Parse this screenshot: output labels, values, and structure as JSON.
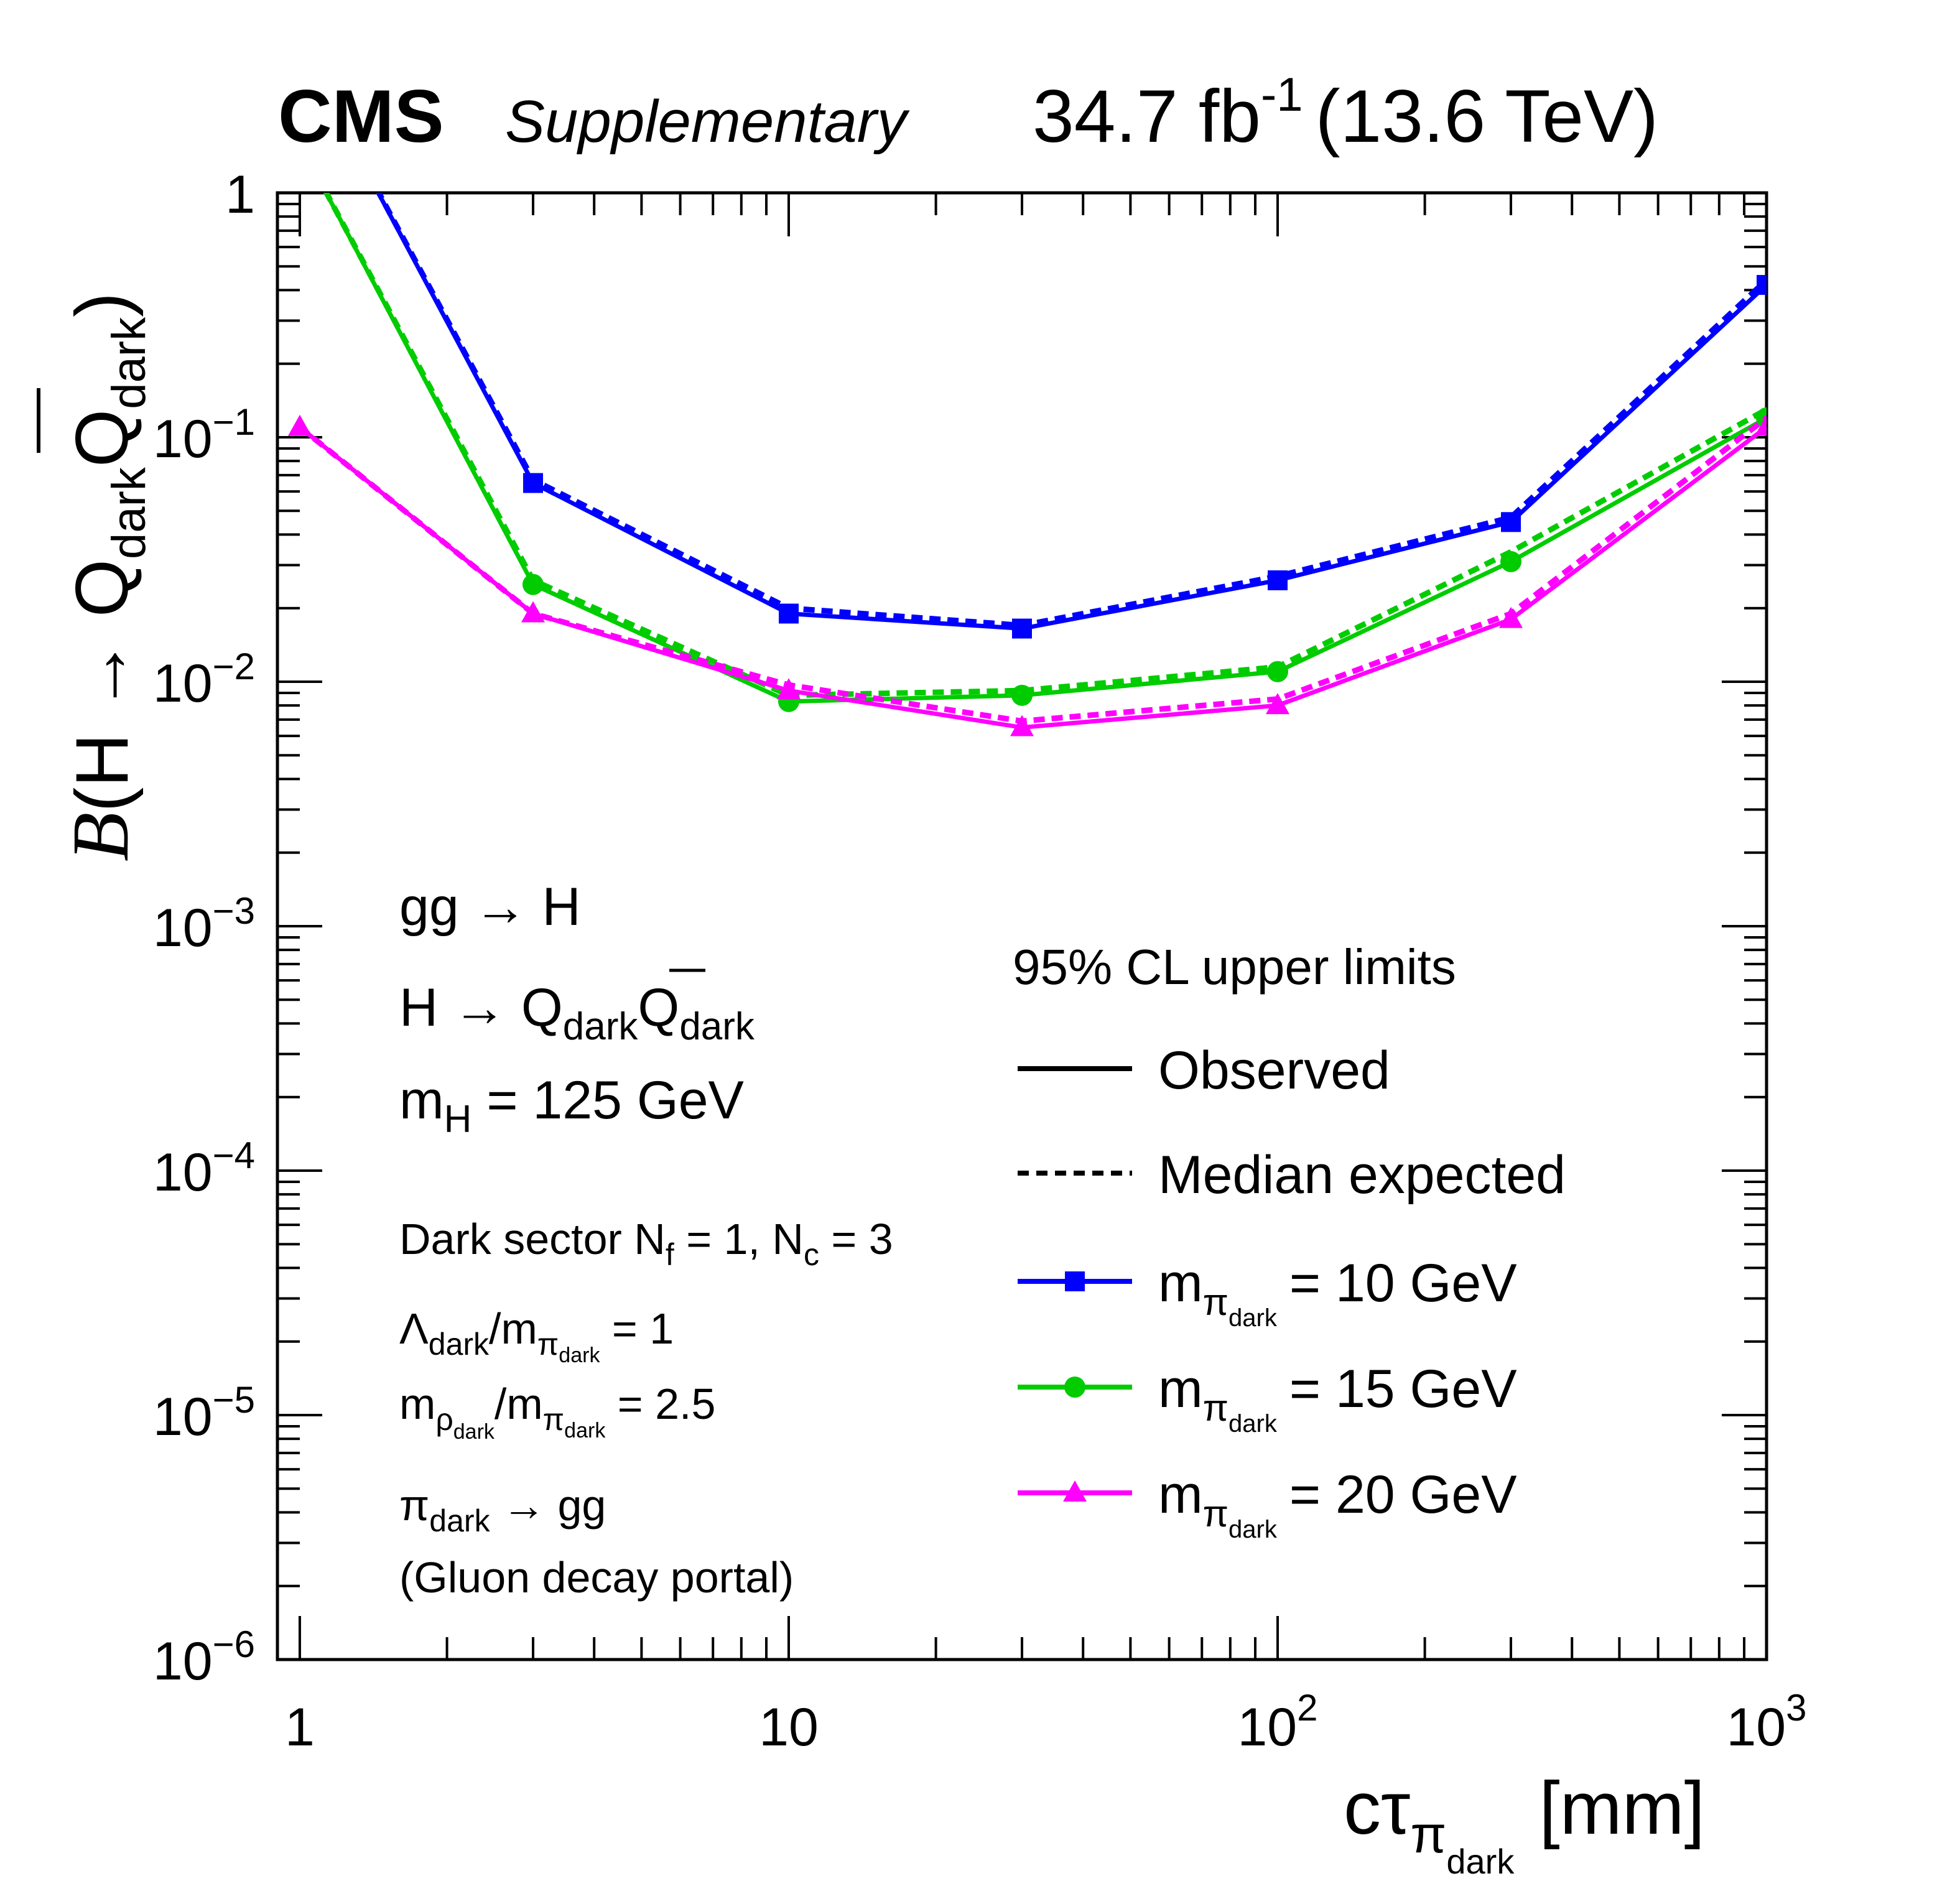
{
  "header": {
    "experiment": "CMS",
    "tag": "Supplementary",
    "lumi_value": "34.7 fb",
    "lumi_exp": "-1",
    "energy": "(13.6 TeV)"
  },
  "axes": {
    "y_label": {
      "sym": "B",
      "open": "(H → Q",
      "sub1": "dark",
      "q2": "Q",
      "sub2": "dark",
      "close": ")"
    },
    "x_label": {
      "main": "cτ",
      "sub": "π",
      "subsub": "dark",
      "unit": "[mm]"
    },
    "x_ticks": [
      {
        "value": 1,
        "base": "1",
        "exp": ""
      },
      {
        "value": 10,
        "base": "10",
        "exp": ""
      },
      {
        "value": 100,
        "base": "10",
        "exp": "2"
      },
      {
        "value": 1000,
        "base": "10",
        "exp": "3"
      }
    ],
    "y_ticks": [
      {
        "value": 1,
        "base": "1",
        "exp": ""
      },
      {
        "value": 0.1,
        "base": "10",
        "exp": "−1"
      },
      {
        "value": 0.01,
        "base": "10",
        "exp": "−2"
      },
      {
        "value": 0.001,
        "base": "10",
        "exp": "−3"
      },
      {
        "value": 0.0001,
        "base": "10",
        "exp": "−4"
      },
      {
        "value": 1e-05,
        "base": "10",
        "exp": "−5"
      },
      {
        "value": 1e-06,
        "base": "10",
        "exp": "−6"
      }
    ]
  },
  "annotations": {
    "process": "gg → H",
    "decay": {
      "main": "H → Q",
      "sub1": "dark",
      "q2": "Q",
      "sub2": "dark"
    },
    "mass": {
      "main": "m",
      "sub": "H",
      "rest": " = 125 GeV"
    },
    "sector": {
      "a": "Dark sector N",
      "a_sub": "f",
      "b": " = 1,  N",
      "b_sub": "c",
      "c": " = 3"
    },
    "lambda": {
      "a": "Λ",
      "a_sub": "dark",
      "b": "/m",
      "b_sub": "π",
      "b_subsub": "dark",
      "c": " = 1"
    },
    "rho": {
      "a": "m",
      "a_sub": "ρ",
      "a_subsub": "dark",
      "b": "/m",
      "b_sub": "π",
      "b_subsub": "dark",
      "c": " = 2.5"
    },
    "portal": {
      "a": "π",
      "a_sub": "dark",
      "b": " → gg"
    },
    "portal_note": "(Gluon decay portal)"
  },
  "legend": {
    "title": "95% CL upper limits",
    "observed": "Observed",
    "expected": "Median expected",
    "mass_prefix": "m",
    "mass_sub": "π",
    "mass_subsub": "dark"
  },
  "chart_data": {
    "type": "line",
    "x_scale": "log",
    "y_scale": "log",
    "xlim": [
      0.9,
      1000
    ],
    "ylim": [
      1e-06,
      1
    ],
    "x": [
      1,
      3,
      10,
      30,
      100,
      300,
      1000
    ],
    "series": [
      {
        "name": "= 10 GeV",
        "color": "#0000ff",
        "marker": "square",
        "observed": [
          4.0,
          0.065,
          0.019,
          0.0165,
          0.026,
          0.045,
          0.42
        ],
        "expected": [
          4.0,
          0.067,
          0.02,
          0.017,
          0.027,
          0.047,
          0.44
        ]
      },
      {
        "name": "= 15 GeV",
        "color": "#00cc00",
        "marker": "circle",
        "observed": [
          1.6,
          0.025,
          0.0083,
          0.0088,
          0.011,
          0.031,
          0.12
        ],
        "expected": [
          1.6,
          0.026,
          0.0088,
          0.0092,
          0.0115,
          0.034,
          0.13
        ]
      },
      {
        "name": "= 20 GeV",
        "color": "#ff00ff",
        "marker": "triangle",
        "observed": [
          0.11,
          0.019,
          0.0092,
          0.0065,
          0.008,
          0.018,
          0.11
        ],
        "expected": [
          0.11,
          0.019,
          0.0097,
          0.0069,
          0.0085,
          0.019,
          0.12
        ]
      }
    ],
    "legend_position": "lower-right",
    "grid": false
  }
}
